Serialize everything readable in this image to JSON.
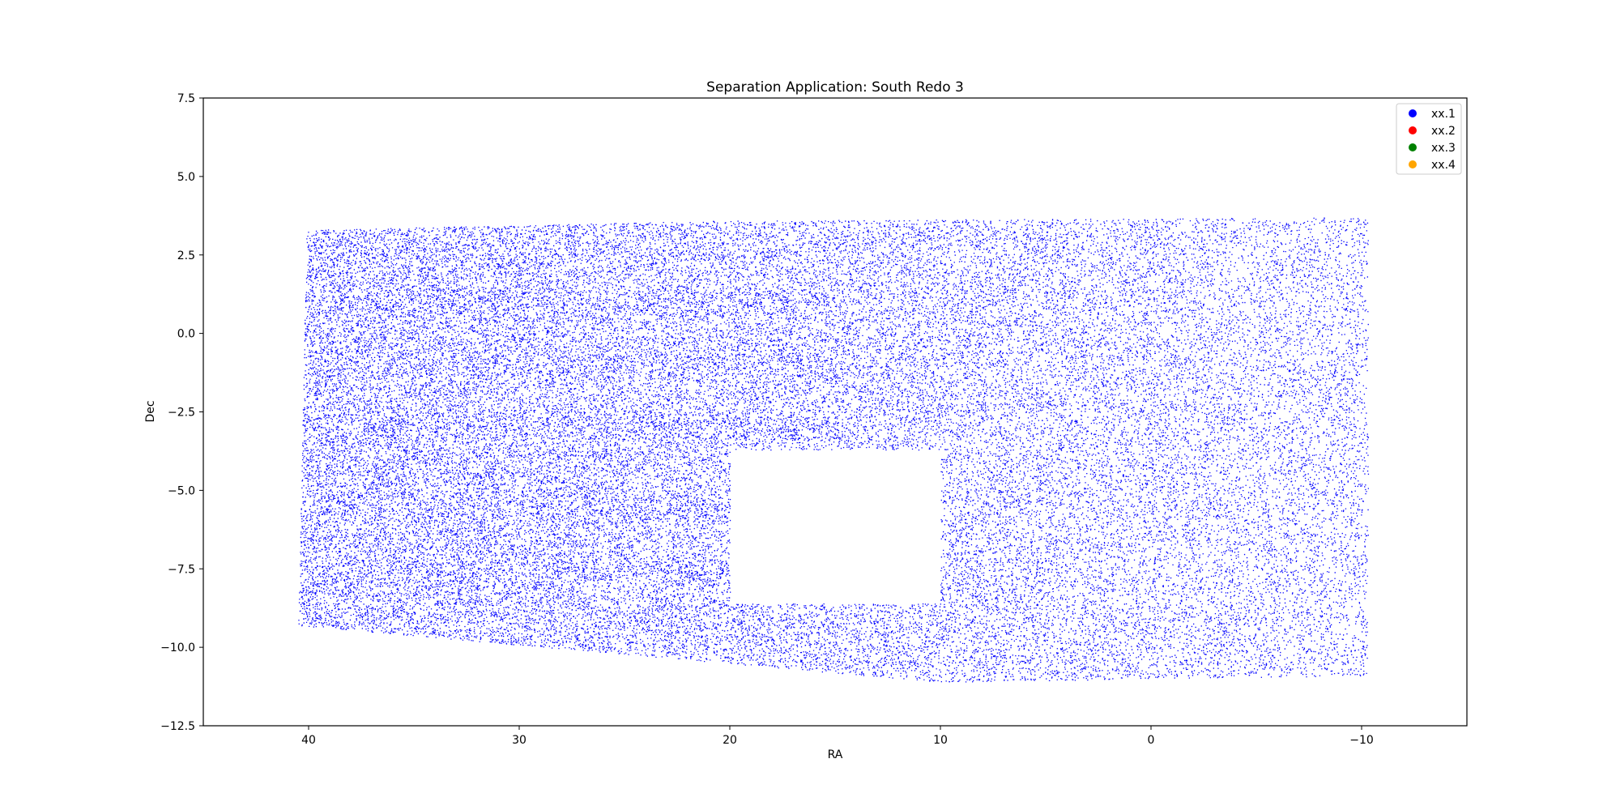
{
  "chart_data": {
    "type": "scatter",
    "title": "Separation Application: South Redo 3",
    "xlabel": "RA",
    "ylabel": "Dec",
    "xlim": [
      45,
      -15
    ],
    "ylim": [
      -12.5,
      7.5
    ],
    "x_inverted": true,
    "xticks": [
      40,
      30,
      20,
      10,
      0,
      -10
    ],
    "xtick_labels": [
      "40",
      "30",
      "20",
      "10",
      "0",
      "−10"
    ],
    "yticks": [
      7.5,
      5.0,
      2.5,
      0.0,
      -2.5,
      -5.0,
      -7.5,
      -10.0,
      -12.5
    ],
    "ytick_labels": [
      "7.5",
      "5.0",
      "2.5",
      "0.0",
      "−2.5",
      "−5.0",
      "−7.5",
      "−10.0",
      "−12.5"
    ],
    "grid": false,
    "legend_position": "top-right",
    "series": [
      {
        "name": "xx.1",
        "color": "#0000ff",
        "marker_size": "tiny",
        "region": {
          "ra_min": -10.3,
          "ra_max": 40.5,
          "dec_top_at_ra_40": 3.3,
          "dec_top_at_ra_20": 3.6,
          "dec_top_at_ra_-10": 3.7,
          "dec_bottom_at_ra_40.5": -9.3,
          "dec_bottom_at_ra_10": -11.1,
          "dec_bottom_at_ra_-10": -10.9
        },
        "empty_region": {
          "ra_min": 10,
          "ra_max": 20,
          "dec_min": -8.6,
          "dec_max": -3.7
        },
        "dense_dec_bands": [
          1.0,
          -1.0,
          -3.0,
          -5.5,
          -7.5
        ]
      },
      {
        "name": "xx.2",
        "color": "#ff0000",
        "values": []
      },
      {
        "name": "xx.3",
        "color": "#008000",
        "values": []
      },
      {
        "name": "xx.4",
        "color": "#ffa500",
        "values": []
      }
    ]
  }
}
